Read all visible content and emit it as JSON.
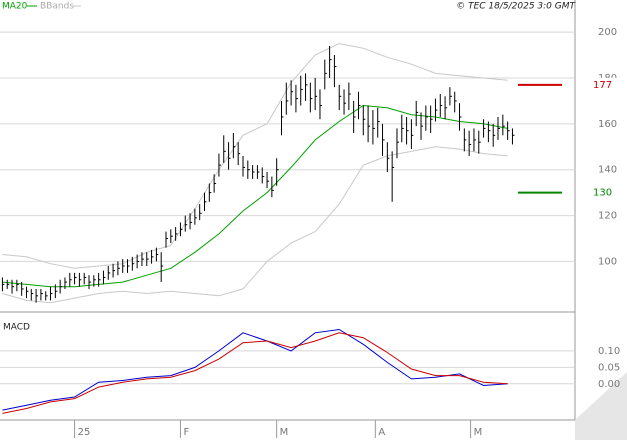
{
  "chart_data": [
    {
      "type": "ohlc",
      "annotation": "© TEC 18/5/2025 3:0 GMT",
      "x": [
        0,
        1,
        2,
        3,
        4,
        5,
        6,
        7,
        8,
        9,
        10,
        11,
        12,
        13,
        14,
        15,
        16,
        17,
        18,
        19,
        20,
        21,
        22,
        23,
        24,
        25,
        26,
        27,
        28,
        29,
        30,
        31,
        32,
        33,
        34,
        35,
        36,
        37,
        38,
        39,
        40,
        41,
        42,
        43,
        44,
        45,
        46,
        47,
        48,
        49,
        50,
        51,
        52,
        53,
        54,
        55,
        56,
        57,
        58,
        59,
        60,
        61,
        62,
        63,
        64,
        65,
        66,
        67,
        68,
        69,
        70,
        71,
        72,
        73,
        74,
        75,
        76,
        77,
        78,
        79,
        80,
        81,
        82,
        83,
        84,
        85,
        86,
        87,
        88,
        89,
        90,
        91,
        92,
        93,
        94,
        95,
        96,
        97,
        98,
        99,
        100,
        101,
        102,
        103,
        104,
        105,
        106
      ],
      "high": [
        93,
        92,
        92,
        92,
        91,
        89,
        88,
        88,
        88,
        87,
        89,
        90,
        92,
        93,
        95,
        95,
        95,
        95,
        94,
        94,
        95,
        96,
        98,
        99,
        100,
        101,
        101,
        102,
        103,
        104,
        104,
        105,
        106,
        104,
        113,
        114,
        115,
        117,
        120,
        121,
        123,
        125,
        130,
        134,
        138,
        147,
        155,
        152,
        156,
        152,
        146,
        144,
        142,
        142,
        141,
        139,
        137,
        145,
        170,
        178,
        179,
        177,
        181,
        182,
        178,
        180,
        175,
        188,
        194,
        190,
        177,
        175,
        178,
        170,
        174,
        168,
        168,
        166,
        167,
        160,
        152,
        148,
        158,
        164,
        163,
        162,
        170,
        165,
        168,
        168,
        171,
        173,
        172,
        176,
        174,
        169,
        158,
        157,
        158,
        157,
        162,
        161,
        160,
        163,
        164,
        161,
        158
      ],
      "low": [
        87,
        88,
        86,
        87,
        85,
        84,
        83,
        82,
        83,
        83,
        83,
        84,
        86,
        88,
        89,
        90,
        89,
        90,
        88,
        89,
        89,
        90,
        92,
        93,
        94,
        95,
        95,
        96,
        97,
        98,
        98,
        99,
        100,
        91,
        106,
        108,
        109,
        111,
        113,
        114,
        116,
        118,
        122,
        126,
        130,
        137,
        143,
        140,
        145,
        142,
        137,
        136,
        136,
        136,
        134,
        132,
        128,
        133,
        155,
        164,
        168,
        165,
        168,
        170,
        165,
        166,
        162,
        175,
        180,
        176,
        166,
        164,
        166,
        156,
        162,
        155,
        152,
        151,
        154,
        146,
        139,
        126,
        145,
        152,
        151,
        149,
        159,
        153,
        157,
        156,
        161,
        163,
        162,
        168,
        165,
        157,
        148,
        146,
        148,
        147,
        154,
        152,
        150,
        153,
        155,
        153,
        151
      ],
      "close": [
        90,
        90,
        89,
        90,
        88,
        87,
        86,
        85,
        86,
        85,
        86,
        87,
        89,
        91,
        92,
        93,
        92,
        93,
        91,
        92,
        92,
        93,
        95,
        96,
        97,
        98,
        98,
        99,
        100,
        101,
        101,
        102,
        103,
        98,
        110,
        111,
        112,
        114,
        116,
        117,
        119,
        121,
        126,
        130,
        134,
        142,
        148,
        145,
        150,
        147,
        141,
        140,
        139,
        139,
        137,
        135,
        131,
        140,
        163,
        170,
        174,
        171,
        175,
        177,
        171,
        172,
        168,
        182,
        188,
        185,
        172,
        169,
        173,
        163,
        168,
        162,
        159,
        158,
        161,
        153,
        145,
        141,
        152,
        158,
        157,
        155,
        165,
        159,
        163,
        162,
        166,
        168,
        167,
        172,
        170,
        163,
        153,
        151,
        153,
        152,
        158,
        157,
        155,
        158,
        159,
        157,
        155
      ],
      "color": "#000000",
      "series": [
        {
          "name": "MA20",
          "color": "#00a000",
          "x": [
            0,
            5,
            10,
            15,
            20,
            25,
            30,
            35,
            40,
            45,
            50,
            55,
            60,
            65,
            70,
            75,
            80,
            85,
            90,
            95,
            100,
            105
          ],
          "values": [
            91,
            90,
            89,
            89,
            90,
            91,
            94,
            97,
            104,
            112,
            122,
            130,
            141,
            153,
            161,
            168,
            167,
            164,
            163,
            161,
            160,
            158
          ]
        },
        {
          "name": "BBands",
          "color": "#c8c8c8",
          "x": [
            0,
            5,
            10,
            15,
            20,
            25,
            30,
            35,
            40,
            45,
            50,
            55,
            60,
            65,
            70,
            75,
            80,
            85,
            90,
            95,
            100,
            105
          ],
          "upper": [
            103,
            102,
            99,
            97,
            98,
            99,
            104,
            107,
            123,
            140,
            155,
            160,
            178,
            190,
            195,
            193,
            189,
            186,
            182,
            181,
            180,
            179
          ],
          "lower": [
            86,
            83,
            82,
            84,
            86,
            87,
            86,
            87,
            86,
            85,
            88,
            100,
            108,
            113,
            125,
            142,
            146,
            148,
            150,
            149,
            147,
            146
          ]
        }
      ],
      "reference_lines": [
        {
          "value": 177,
          "color": "#cc0000"
        },
        {
          "value": 130,
          "color": "#008800"
        }
      ],
      "xlim": [
        -0.5,
        119
      ],
      "ylim": [
        81,
        214
      ],
      "yticks": [
        100,
        120,
        140,
        160,
        180,
        200
      ],
      "grid": true
    },
    {
      "type": "line",
      "title": "MACD",
      "x": [
        0,
        5,
        10,
        15,
        20,
        25,
        30,
        35,
        40,
        45,
        50,
        55,
        60,
        65,
        70,
        75,
        80,
        85,
        90,
        95,
        100,
        105
      ],
      "series": [
        {
          "color": "#0000cc",
          "values": [
            -0.08,
            -0.065,
            -0.05,
            -0.04,
            0.005,
            0.01,
            0.02,
            0.025,
            0.05,
            0.1,
            0.155,
            0.13,
            0.1,
            0.155,
            0.165,
            0.12,
            0.065,
            0.015,
            0.02,
            0.03,
            -0.005,
            0.0
          ]
        },
        {
          "color": "#cc0000",
          "values": [
            -0.09,
            -0.075,
            -0.055,
            -0.045,
            -0.01,
            0.005,
            0.015,
            0.02,
            0.04,
            0.075,
            0.125,
            0.13,
            0.11,
            0.13,
            0.155,
            0.14,
            0.095,
            0.045,
            0.025,
            0.025,
            0.005,
            0.0
          ]
        }
      ],
      "xlim": [
        -0.5,
        119
      ],
      "ylim": [
        -0.11,
        0.2
      ],
      "yticks": [
        {
          "value": 0.1,
          "label": "0.10"
        },
        {
          "value": 0.05,
          "label": "0.05"
        },
        {
          "value": 0,
          "label": "0.00"
        }
      ],
      "xticks": [
        {
          "value": 15,
          "label": "25"
        },
        {
          "value": 37,
          "label": "F"
        },
        {
          "value": 57,
          "label": "M"
        },
        {
          "value": 77.5,
          "label": "A"
        },
        {
          "value": 97.3,
          "label": "M"
        }
      ],
      "grid": true
    }
  ]
}
